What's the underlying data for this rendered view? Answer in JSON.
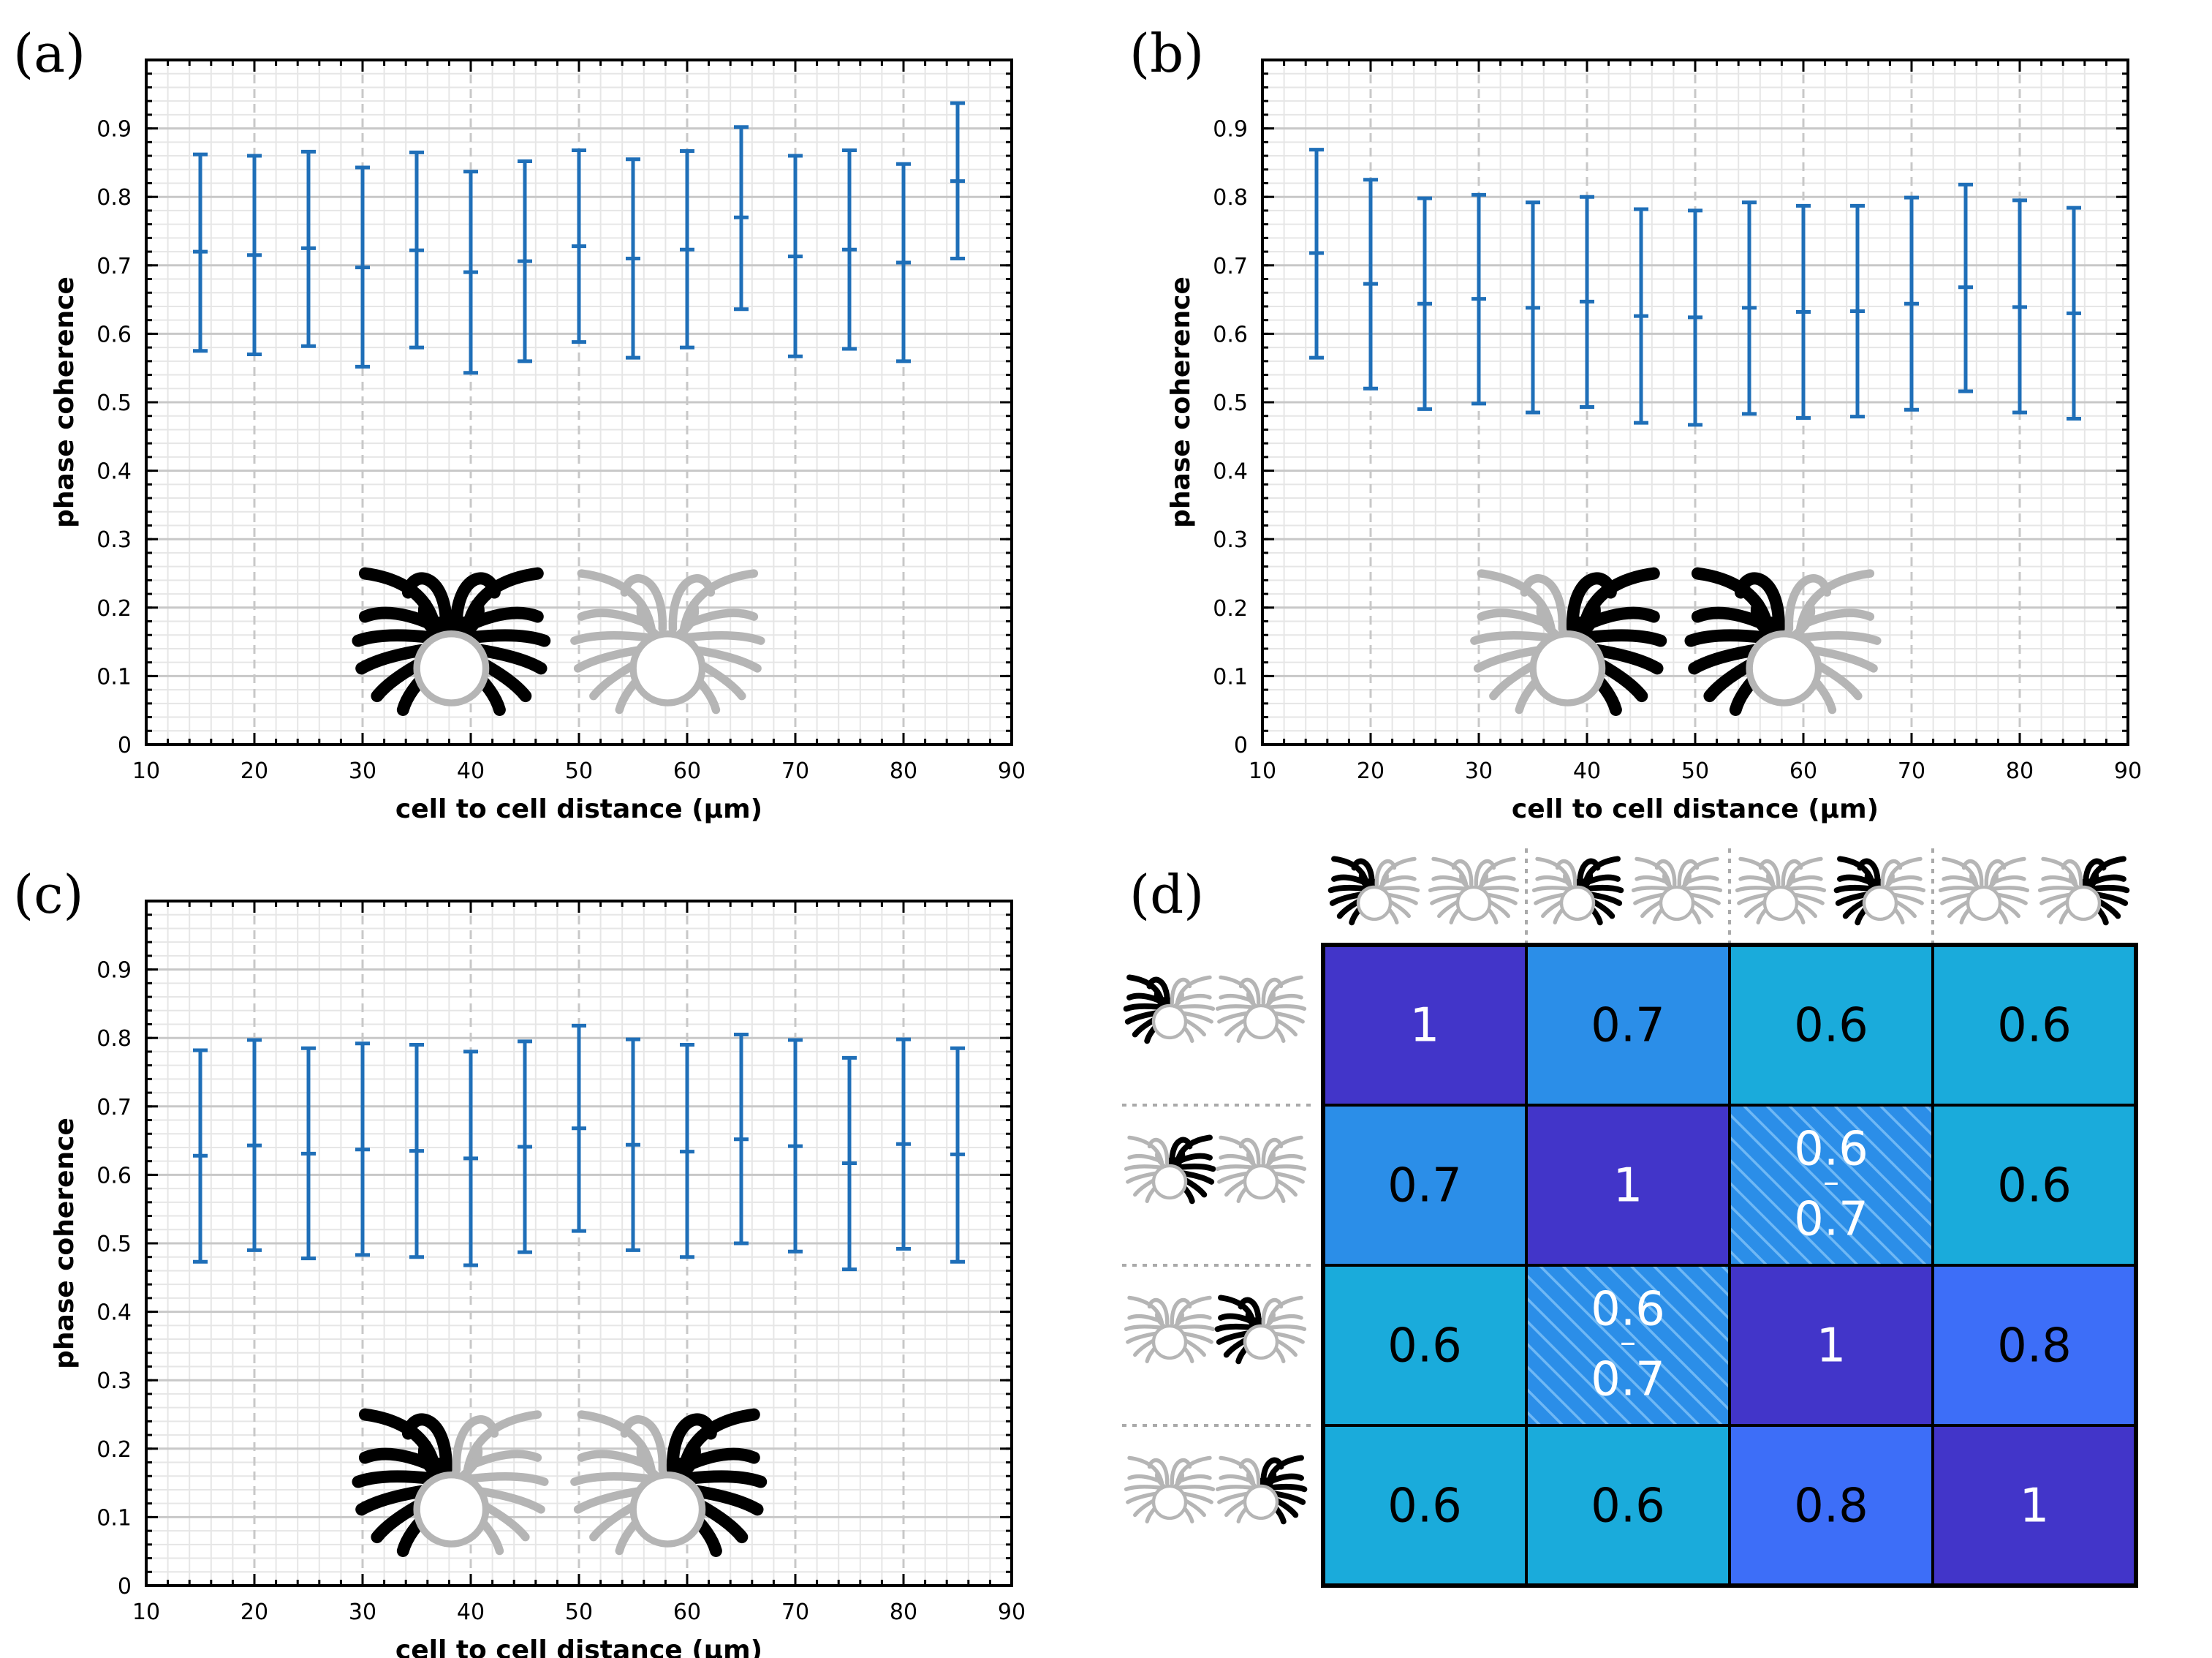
{
  "colors": {
    "errorbar": "#1f6fb8",
    "grid_major": "#c8c8c8",
    "grid_minor": "#e6e6e6",
    "cell_indigo": "#4235c9",
    "cell_blue": "#2b8ee8",
    "cell_cyan": "#1aabdb",
    "cell_royal": "#3d6ef8",
    "neuron_gray": "#b5b5b5",
    "neuron_black": "#000000"
  },
  "chart_data": [
    {
      "type": "errorbar",
      "panel_label": "(a)",
      "xlabel": "cell to cell distance (µm)",
      "ylabel": "phase coherence",
      "xlim": [
        10,
        90
      ],
      "ylim": [
        0,
        1
      ],
      "xticks": [
        10,
        20,
        30,
        40,
        50,
        60,
        70,
        80,
        90
      ],
      "yticks": [
        0,
        0.1,
        0.2,
        0.3,
        0.4,
        0.5,
        0.6,
        0.7,
        0.8,
        0.9
      ],
      "grid": true,
      "x": [
        15,
        20,
        25,
        30,
        35,
        40,
        45,
        50,
        55,
        60,
        65,
        70,
        75,
        80,
        85
      ],
      "mean": [
        0.72,
        0.715,
        0.725,
        0.697,
        0.722,
        0.69,
        0.706,
        0.728,
        0.71,
        0.723,
        0.77,
        0.713,
        0.723,
        0.704,
        0.823
      ],
      "lower": [
        0.575,
        0.57,
        0.582,
        0.552,
        0.58,
        0.543,
        0.56,
        0.588,
        0.565,
        0.58,
        0.636,
        0.567,
        0.578,
        0.56,
        0.71
      ],
      "upper": [
        0.862,
        0.86,
        0.866,
        0.843,
        0.865,
        0.837,
        0.852,
        0.868,
        0.855,
        0.867,
        0.902,
        0.86,
        0.868,
        0.848,
        0.937
      ],
      "icon": "two neurons: left neuron with both arm sets black, right neuron gray"
    },
    {
      "type": "errorbar",
      "panel_label": "(b)",
      "xlabel": "cell to cell distance (µm)",
      "ylabel": "phase coherence",
      "xlim": [
        10,
        90
      ],
      "ylim": [
        0,
        1
      ],
      "xticks": [
        10,
        20,
        30,
        40,
        50,
        60,
        70,
        80,
        90
      ],
      "yticks": [
        0,
        0.1,
        0.2,
        0.3,
        0.4,
        0.5,
        0.6,
        0.7,
        0.8,
        0.9
      ],
      "grid": true,
      "x": [
        15,
        20,
        25,
        30,
        35,
        40,
        45,
        50,
        55,
        60,
        65,
        70,
        75,
        80,
        85
      ],
      "mean": [
        0.718,
        0.673,
        0.644,
        0.651,
        0.638,
        0.647,
        0.626,
        0.624,
        0.638,
        0.632,
        0.633,
        0.644,
        0.668,
        0.639,
        0.63
      ],
      "lower": [
        0.565,
        0.52,
        0.49,
        0.498,
        0.485,
        0.493,
        0.47,
        0.467,
        0.483,
        0.477,
        0.479,
        0.489,
        0.516,
        0.485,
        0.476
      ],
      "upper": [
        0.869,
        0.825,
        0.798,
        0.803,
        0.792,
        0.8,
        0.782,
        0.78,
        0.792,
        0.787,
        0.787,
        0.799,
        0.818,
        0.795,
        0.784
      ],
      "icon": "two neurons: inner arm sets black (left neuron right arms, right neuron left arms)"
    },
    {
      "type": "errorbar",
      "panel_label": "(c)",
      "xlabel": "cell to cell distance (µm)",
      "ylabel": "phase coherence",
      "xlim": [
        10,
        90
      ],
      "ylim": [
        0,
        1
      ],
      "xticks": [
        10,
        20,
        30,
        40,
        50,
        60,
        70,
        80,
        90
      ],
      "yticks": [
        0,
        0.1,
        0.2,
        0.3,
        0.4,
        0.5,
        0.6,
        0.7,
        0.8,
        0.9
      ],
      "grid": true,
      "x": [
        15,
        20,
        25,
        30,
        35,
        40,
        45,
        50,
        55,
        60,
        65,
        70,
        75,
        80,
        85
      ],
      "mean": [
        0.628,
        0.643,
        0.631,
        0.637,
        0.635,
        0.624,
        0.641,
        0.668,
        0.644,
        0.634,
        0.652,
        0.642,
        0.617,
        0.645,
        0.63
      ],
      "lower": [
        0.473,
        0.49,
        0.478,
        0.483,
        0.48,
        0.468,
        0.487,
        0.518,
        0.49,
        0.48,
        0.5,
        0.488,
        0.462,
        0.492,
        0.473
      ],
      "upper": [
        0.782,
        0.797,
        0.785,
        0.792,
        0.79,
        0.78,
        0.795,
        0.818,
        0.798,
        0.79,
        0.805,
        0.797,
        0.771,
        0.798,
        0.785
      ],
      "icon": "two neurons: outer arm sets black (left neuron left arms, right neuron right arms)"
    },
    {
      "type": "heatmap",
      "panel_label": "(d)",
      "rows": 4,
      "cols": 4,
      "values": [
        [
          "1",
          "0.7",
          "0.6",
          "0.6"
        ],
        [
          "0.7",
          "1",
          "0.6–0.7",
          "0.6"
        ],
        [
          "0.6",
          "0.6–0.7",
          "1",
          "0.8"
        ],
        [
          "0.6",
          "0.6",
          "0.8",
          "1"
        ]
      ],
      "cell_colors": [
        [
          "indigo",
          "blue",
          "cyan",
          "cyan"
        ],
        [
          "blue",
          "indigo",
          "hatched",
          "cyan"
        ],
        [
          "cyan",
          "hatched",
          "indigo",
          "royal"
        ],
        [
          "cyan",
          "cyan",
          "royal",
          "indigo"
        ]
      ],
      "text_colors": [
        [
          "white",
          "black",
          "black",
          "black"
        ],
        [
          "black",
          "white",
          "white",
          "black"
        ],
        [
          "black",
          "white",
          "white",
          "black"
        ],
        [
          "black",
          "black",
          "black",
          "white"
        ]
      ],
      "header_icons": [
        "A-left",
        "A-right",
        "B-left",
        "B-right"
      ]
    }
  ]
}
